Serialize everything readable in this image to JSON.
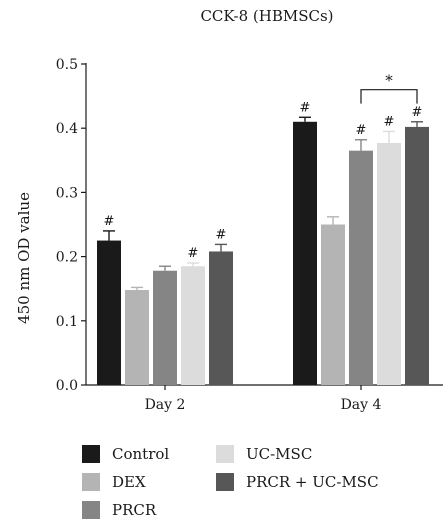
{
  "chart_data": {
    "type": "bar",
    "title": "CCK-8 (HBMSCs)",
    "xlabel": "",
    "ylabel": "450 nm OD value",
    "ylim": [
      0,
      0.5
    ],
    "yticks": [
      "0.0",
      "0.1",
      "0.2",
      "0.3",
      "0.4",
      "0.5"
    ],
    "categories": [
      "Day 2",
      "Day 4"
    ],
    "grid": false,
    "legend_position": "bottom",
    "series": [
      {
        "name": "Control",
        "color": "#1a1a1a",
        "values": [
          0.225,
          0.41
        ],
        "errors": [
          0.015,
          0.007
        ],
        "marks": [
          "#",
          "#"
        ]
      },
      {
        "name": "DEX",
        "color": "#b4b4b4",
        "values": [
          0.148,
          0.25
        ],
        "errors": [
          0.004,
          0.012
        ],
        "marks": [
          "",
          ""
        ]
      },
      {
        "name": "PRCR",
        "color": "#858585",
        "values": [
          0.178,
          0.365
        ],
        "errors": [
          0.007,
          0.017
        ],
        "marks": [
          "",
          "#"
        ]
      },
      {
        "name": "UC-MSC",
        "color": "#dcdcdc",
        "values": [
          0.185,
          0.377
        ],
        "errors": [
          0.005,
          0.018
        ],
        "marks": [
          "#",
          "#"
        ]
      },
      {
        "name": "PRCR + UC-MSC",
        "color": "#575757",
        "values": [
          0.208,
          0.402
        ],
        "errors": [
          0.011,
          0.008
        ],
        "marks": [
          "#",
          "#"
        ]
      }
    ],
    "annotations": [
      {
        "text": "*",
        "category": "Day 4",
        "from_series": "PRCR",
        "to_series": "PRCR + UC-MSC",
        "y": 0.46
      }
    ]
  }
}
